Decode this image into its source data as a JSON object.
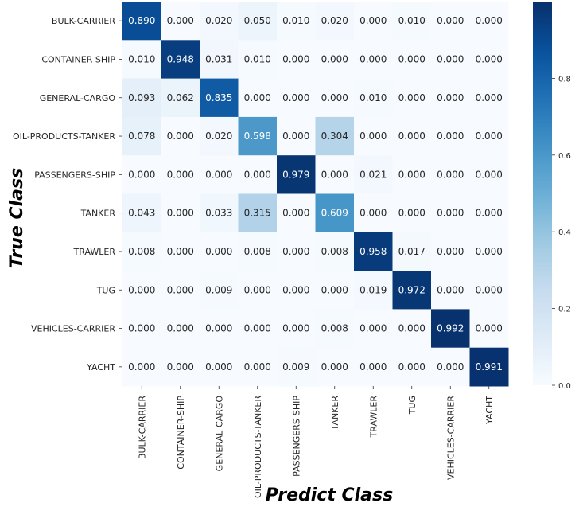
{
  "chart_data": {
    "type": "heatmap",
    "title": "",
    "xlabel": "Predict Class",
    "ylabel": "True Class",
    "rows": [
      "BULK-CARRIER",
      "CONTAINER-SHIP",
      "GENERAL-CARGO",
      "OIL-PRODUCTS-TANKER",
      "PASSENGERS-SHIP",
      "TANKER",
      "TRAWLER",
      "TUG",
      "VEHICLES-CARRIER",
      "YACHT"
    ],
    "columns": [
      "BULK-CARRIER",
      "CONTAINER-SHIP",
      "GENERAL-CARGO",
      "OIL-PRODUCTS-TANKER",
      "PASSENGERS-SHIP",
      "TANKER",
      "TRAWLER",
      "TUG",
      "VEHICLES-CARRIER",
      "YACHT"
    ],
    "values": [
      [
        0.89,
        0.0,
        0.02,
        0.05,
        0.01,
        0.02,
        0.0,
        0.01,
        0.0,
        0.0
      ],
      [
        0.01,
        0.948,
        0.031,
        0.01,
        0.0,
        0.0,
        0.0,
        0.0,
        0.0,
        0.0
      ],
      [
        0.093,
        0.062,
        0.835,
        0.0,
        0.0,
        0.0,
        0.01,
        0.0,
        0.0,
        0.0
      ],
      [
        0.078,
        0.0,
        0.02,
        0.598,
        0.0,
        0.304,
        0.0,
        0.0,
        0.0,
        0.0
      ],
      [
        0.0,
        0.0,
        0.0,
        0.0,
        0.979,
        0.0,
        0.021,
        0.0,
        0.0,
        0.0
      ],
      [
        0.043,
        0.0,
        0.033,
        0.315,
        0.0,
        0.609,
        0.0,
        0.0,
        0.0,
        0.0
      ],
      [
        0.008,
        0.0,
        0.0,
        0.008,
        0.0,
        0.008,
        0.958,
        0.017,
        0.0,
        0.0
      ],
      [
        0.0,
        0.0,
        0.009,
        0.0,
        0.0,
        0.0,
        0.019,
        0.972,
        0.0,
        0.0
      ],
      [
        0.0,
        0.0,
        0.0,
        0.0,
        0.0,
        0.008,
        0.0,
        0.0,
        0.992,
        0.0
      ],
      [
        0.0,
        0.0,
        0.0,
        0.0,
        0.009,
        0.0,
        0.0,
        0.0,
        0.0,
        0.991
      ]
    ],
    "value_format": "0.000",
    "colormap": "Blues",
    "colorbar": {
      "range": [
        0.0,
        1.0
      ],
      "ticks": [
        "0.0",
        "0.2",
        "0.4",
        "0.6",
        "0.8"
      ]
    }
  }
}
